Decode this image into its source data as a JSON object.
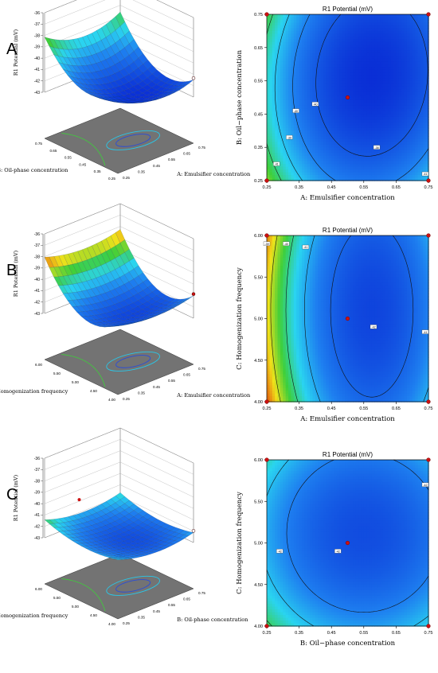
{
  "panels": [
    {
      "letter": "A",
      "surface": {
        "zlabel": "R1 Potential (mV)",
        "zticks": [
          "-36",
          "-37",
          "-38",
          "-39",
          "-40",
          "-41",
          "-42",
          "-43"
        ],
        "xlabel": "A: Emulsifier concentration",
        "xticks": [
          "0.25",
          "0.35",
          "0.45",
          "0.55",
          "0.65",
          "0.75"
        ],
        "ylabel": "B: Oil-phase concentration",
        "yticks": [
          "0.25",
          "0.35",
          "0.45",
          "0.55",
          "0.65",
          "0.75"
        ]
      },
      "contour": {
        "title": "R1 Potential (mV)",
        "xlabel": "A: Emulsifier concentration",
        "ylabel": "B: Oil−phase concentration",
        "xticks": [
          "0.25",
          "0.35",
          "0.45",
          "0.55",
          "0.65",
          "0.75"
        ],
        "yticks": [
          "0.25",
          "0.35",
          "0.45",
          "0.55",
          "0.65",
          "0.75"
        ],
        "contour_labels": [
          "-41",
          "-40",
          "-40",
          "-39",
          "-38",
          "-41"
        ]
      }
    },
    {
      "letter": "B",
      "surface": {
        "zlabel": "R1 Potential (mV)",
        "zticks": [
          "-36",
          "-37",
          "-38",
          "-39",
          "-40",
          "-41",
          "-42",
          "-43"
        ],
        "xlabel": "A: Emulsifier concentration",
        "xticks": [
          "0.25",
          "0.35",
          "0.45",
          "0.55",
          "0.65",
          "0.75"
        ],
        "ylabel": "C: Homogenization frequency",
        "yticks": [
          "4.00",
          "4.50",
          "5.00",
          "5.50",
          "6.00"
        ]
      },
      "contour": {
        "title": "R1 Potential (mV)",
        "xlabel": "A: Emulsifier concentration",
        "ylabel": "C: Homogenization frequency",
        "xticks": [
          "0.25",
          "0.35",
          "0.45",
          "0.55",
          "0.65",
          "0.75"
        ],
        "yticks": [
          "4.00",
          "4.50",
          "5.00",
          "5.50",
          "6.00"
        ],
        "contour_labels": [
          "-39",
          "-40",
          "-41",
          "-42",
          "-41"
        ]
      }
    },
    {
      "letter": "C",
      "surface": {
        "zlabel": "R1 Potential (mV)",
        "zticks": [
          "-36",
          "-37",
          "-38",
          "-39",
          "-40",
          "-41",
          "-42",
          "-43"
        ],
        "xlabel": "B: Oil-phase concentration",
        "xticks": [
          "0.25",
          "0.35",
          "0.45",
          "0.55",
          "0.65",
          "0.75"
        ],
        "ylabel": "C: Homogenization frequency",
        "yticks": [
          "4.00",
          "4.50",
          "5.00",
          "5.50",
          "6.00"
        ]
      },
      "contour": {
        "title": "R1 Potential (mV)",
        "xlabel": "B: Oil−phase concentration",
        "ylabel": "C: Homogenization frequency",
        "xticks": [
          "0.25",
          "0.35",
          "0.45",
          "0.55",
          "0.65",
          "0.75"
        ],
        "yticks": [
          "4.00",
          "4.50",
          "5.00",
          "5.50",
          "6.00"
        ],
        "contour_labels": [
          "-42",
          "-42",
          "-42"
        ]
      }
    }
  ],
  "colors": {
    "low": "#0a2fd6",
    "mid": "#2ad4f0",
    "green": "#3ecf3a",
    "yellow": "#f0e21a",
    "high": "#e0480c",
    "floor": "#737373",
    "design_point": "#cc1111"
  },
  "chart_data": [
    {
      "type": "heatmap",
      "title": "R1 Potential (mV)",
      "xlabel": "A: Emulsifier concentration",
      "ylabel": "B: Oil−phase concentration",
      "xlim": [
        0.25,
        0.75
      ],
      "ylim": [
        0.25,
        0.75
      ],
      "center": [
        0.5,
        0.5
      ],
      "minimum": [
        0.58,
        0.57
      ],
      "contour_levels": [
        -41,
        -40,
        -39,
        -38
      ],
      "design_points": [
        [
          0.25,
          0.25
        ],
        [
          0.75,
          0.25
        ],
        [
          0.25,
          0.75
        ],
        [
          0.75,
          0.75
        ],
        [
          0.5,
          0.5
        ]
      ]
    },
    {
      "type": "heatmap",
      "title": "R1 Potential (mV)",
      "xlabel": "A: Emulsifier concentration",
      "ylabel": "C: Homogenization frequency",
      "xlim": [
        0.25,
        0.75
      ],
      "ylim": [
        4.0,
        6.0
      ],
      "center": [
        0.5,
        5.0
      ],
      "minimum": [
        0.58,
        5.1
      ],
      "contour_levels": [
        -42,
        -41,
        -40,
        -39
      ],
      "design_points": [
        [
          0.25,
          4.0
        ],
        [
          0.75,
          4.0
        ],
        [
          0.25,
          6.0
        ],
        [
          0.75,
          6.0
        ],
        [
          0.5,
          5.0
        ]
      ]
    },
    {
      "type": "heatmap",
      "title": "R1 Potential (mV)",
      "xlabel": "B: Oil−phase concentration",
      "ylabel": "C: Homogenization frequency",
      "xlim": [
        0.25,
        0.75
      ],
      "ylim": [
        4.0,
        6.0
      ],
      "center": [
        0.5,
        5.0
      ],
      "minimum": [
        0.56,
        5.1
      ],
      "contour_levels": [
        -42
      ],
      "design_points": [
        [
          0.25,
          4.0
        ],
        [
          0.75,
          4.0
        ],
        [
          0.25,
          6.0
        ],
        [
          0.75,
          6.0
        ],
        [
          0.5,
          5.0
        ]
      ]
    }
  ]
}
